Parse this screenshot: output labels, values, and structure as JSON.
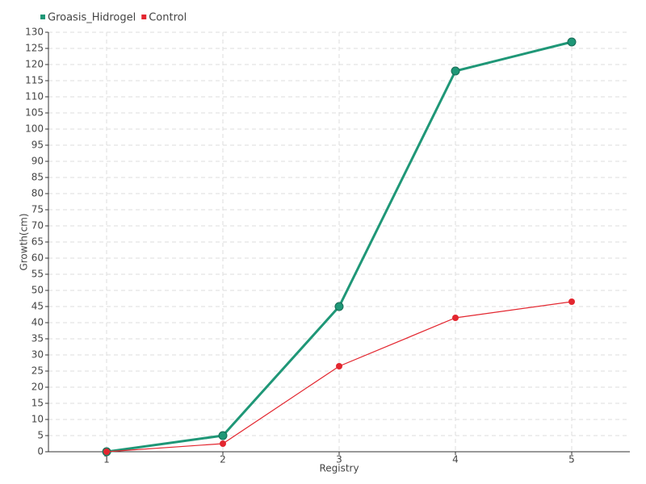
{
  "chart_data": {
    "type": "line",
    "categories": [
      "1",
      "2",
      "3",
      "4",
      "5"
    ],
    "series": [
      {
        "name": "Groasis_Hidrogel",
        "color": "#1f9777",
        "values": [
          0,
          5,
          45,
          118,
          127
        ]
      },
      {
        "name": "Control",
        "color": "#e3262f",
        "values": [
          0,
          2.5,
          26.5,
          41.5,
          46.5
        ]
      }
    ],
    "xlabel": "Registry",
    "ylabel": "Growth(cm)",
    "ylim": [
      0,
      130
    ],
    "yticks": [
      0,
      5,
      10,
      15,
      20,
      25,
      30,
      35,
      40,
      45,
      50,
      55,
      60,
      65,
      70,
      75,
      80,
      85,
      90,
      95,
      100,
      105,
      110,
      115,
      120,
      125,
      130
    ],
    "grid": true,
    "legend": "top-left"
  }
}
